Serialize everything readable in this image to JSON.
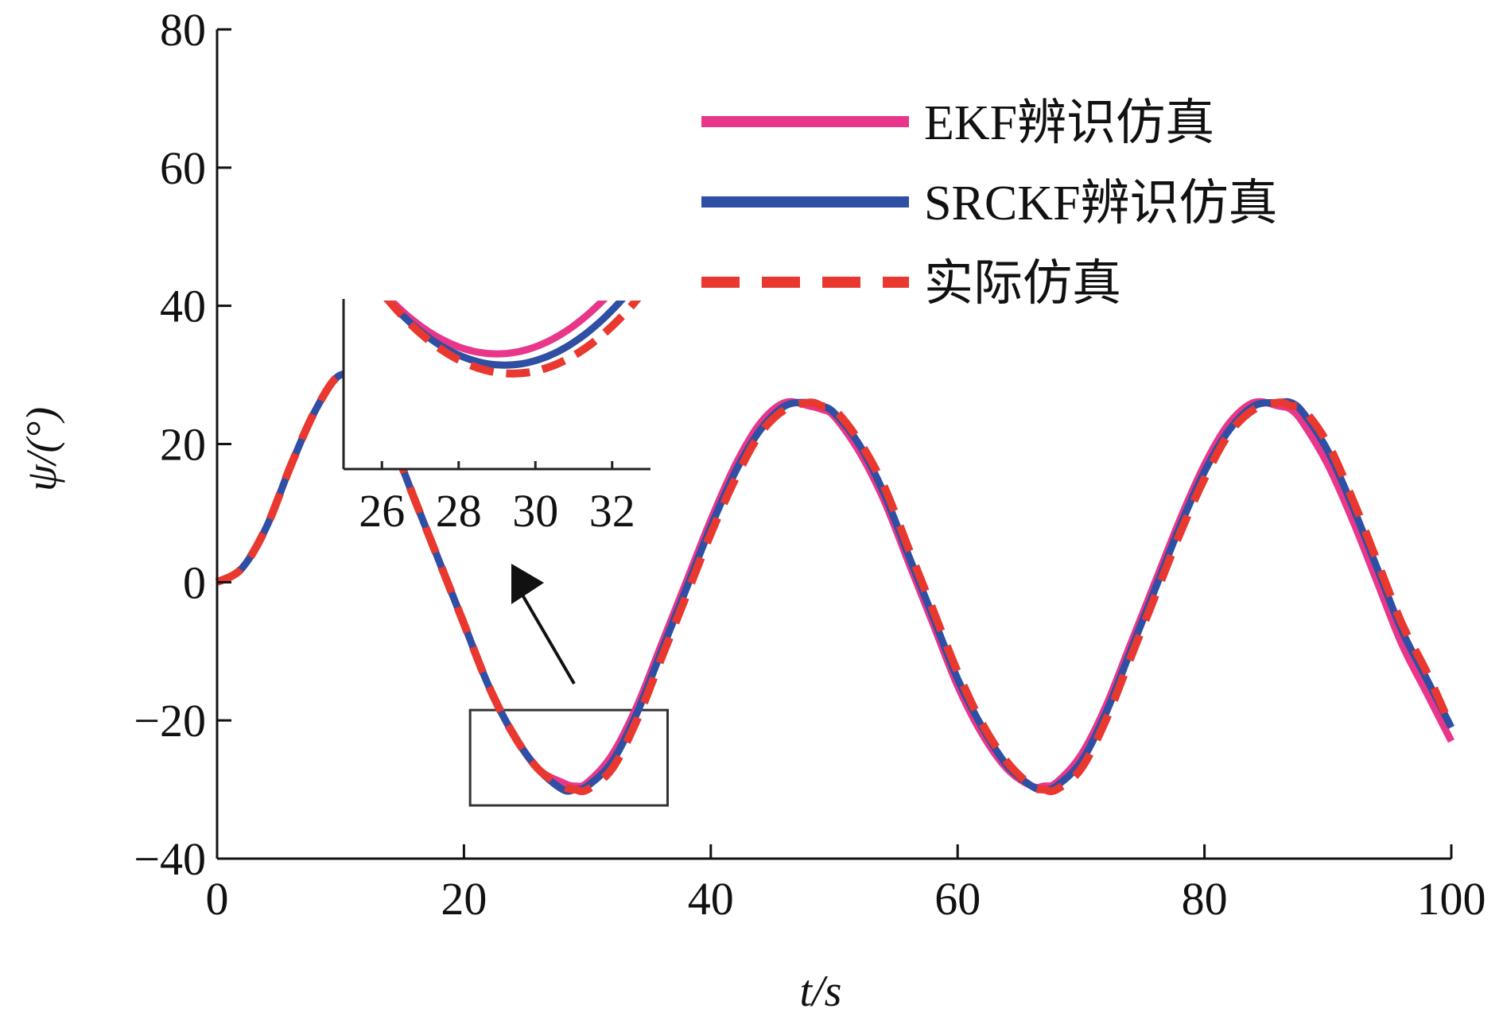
{
  "chart_data": {
    "type": "line",
    "xlabel": "t/s",
    "ylabel": "ψ/(°)",
    "xlim": [
      0,
      100
    ],
    "ylim": [
      -40,
      80
    ],
    "xticks": [
      0,
      20,
      40,
      60,
      80,
      100
    ],
    "yticks": [
      -40,
      -20,
      0,
      20,
      40,
      60,
      80
    ],
    "xtick_labels": [
      "0",
      "20",
      "40",
      "60",
      "80",
      "100"
    ],
    "ytick_labels": [
      "−40",
      "−20",
      "0",
      "20",
      "40",
      "60",
      "80"
    ],
    "grid": false,
    "legend_position": "top-right",
    "series": [
      {
        "name": "EKF辨识仿真",
        "color": "#e8378a",
        "style": "solid",
        "x": [
          0,
          2,
          4,
          6,
          8,
          10,
          12,
          14,
          16,
          18,
          20,
          22,
          24,
          26,
          28,
          29,
          30,
          32,
          34,
          36,
          38,
          40,
          42,
          44,
          46,
          48,
          49,
          50,
          52,
          54,
          56,
          58,
          60,
          62,
          64,
          66,
          67,
          68,
          70,
          72,
          74,
          76,
          78,
          80,
          82,
          84,
          86,
          87,
          88,
          90,
          92,
          94,
          96,
          98,
          100
        ],
        "y": [
          0,
          2,
          8,
          17,
          25,
          30,
          28,
          21,
          12,
          3,
          -6,
          -15,
          -22,
          -27,
          -29,
          -29.5,
          -29,
          -25,
          -18,
          -9,
          0,
          9,
          17,
          23,
          26,
          25.5,
          25,
          24,
          19,
          12,
          3,
          -6,
          -15,
          -22,
          -27,
          -29.5,
          -29.5,
          -29,
          -25,
          -18,
          -9,
          0,
          9,
          17,
          23,
          26,
          25.5,
          25,
          23,
          17,
          9,
          0,
          -9,
          -16,
          -23
        ]
      },
      {
        "name": "SRCKF辨识仿真",
        "color": "#2e4fa3",
        "style": "solid",
        "x": [
          0,
          2,
          4,
          6,
          8,
          10,
          12,
          14,
          16,
          18,
          20,
          22,
          24,
          26,
          28,
          29,
          30,
          32,
          34,
          36,
          38,
          40,
          42,
          44,
          46,
          48,
          49,
          50,
          52,
          54,
          56,
          58,
          60,
          62,
          64,
          66,
          67,
          68,
          70,
          72,
          74,
          76,
          78,
          80,
          82,
          84,
          86,
          87,
          88,
          90,
          92,
          94,
          96,
          98,
          100
        ],
        "y": [
          0,
          2,
          8,
          17,
          25,
          30,
          28,
          21,
          12,
          3,
          -6,
          -15,
          -22,
          -27,
          -30,
          -30,
          -29.5,
          -26,
          -19,
          -10,
          -1,
          8,
          16,
          22,
          25.5,
          26,
          25.5,
          24.5,
          20,
          13,
          4,
          -5,
          -14,
          -21,
          -26.5,
          -29.5,
          -30,
          -29.5,
          -26,
          -19,
          -10,
          -1,
          8,
          16,
          22,
          25.5,
          26,
          26,
          24.5,
          19,
          11,
          2,
          -7,
          -14,
          -21
        ]
      },
      {
        "name": "实际仿真",
        "color": "#e8382f",
        "style": "dashed",
        "x": [
          0,
          2,
          4,
          6,
          8,
          10,
          12,
          14,
          16,
          18,
          20,
          22,
          24,
          26,
          28,
          29,
          30,
          32,
          34,
          36,
          38,
          40,
          42,
          44,
          46,
          48,
          49,
          50,
          52,
          54,
          56,
          58,
          60,
          62,
          64,
          66,
          67,
          68,
          70,
          72,
          74,
          76,
          78,
          80,
          82,
          84,
          86,
          87,
          88,
          90,
          92,
          94,
          96,
          98,
          100
        ],
        "y": [
          0,
          2,
          8,
          17,
          25,
          30,
          28,
          21,
          12,
          3,
          -6,
          -15,
          -22,
          -27,
          -29.5,
          -30,
          -30,
          -27,
          -20,
          -11,
          -2,
          7,
          15,
          21.5,
          25,
          26,
          25.5,
          25,
          20.5,
          14,
          5,
          -4,
          -13,
          -20.5,
          -26,
          -29.5,
          -30,
          -30,
          -27,
          -20,
          -11,
          -2,
          7,
          15,
          21.5,
          25,
          26,
          25.5,
          25,
          20,
          12,
          3,
          -6,
          -13,
          -21
        ]
      }
    ],
    "inset": {
      "xticks": [
        26,
        28,
        30,
        32
      ],
      "xtick_labels": [
        "26",
        "28",
        "30",
        "32"
      ],
      "xlim": [
        25,
        33
      ],
      "ylim": [
        -31,
        -25
      ]
    }
  }
}
